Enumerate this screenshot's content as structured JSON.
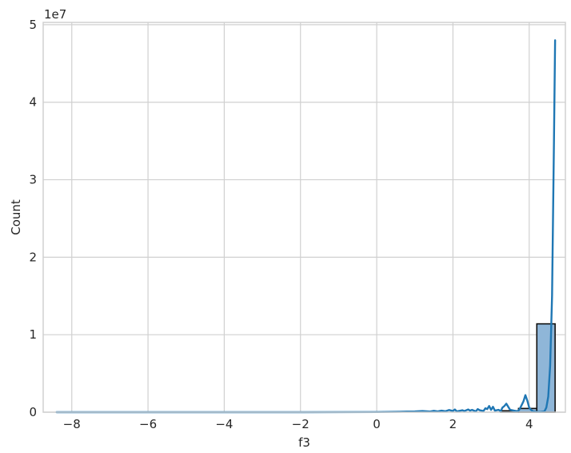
{
  "chart_data": {
    "type": "bar",
    "xlabel": "f3",
    "ylabel": "Count",
    "offset_text": "1e7",
    "xlim": [
      -8.75,
      4.95
    ],
    "ylim": [
      0,
      50300000
    ],
    "x_ticks": [
      -8,
      -6,
      -4,
      -2,
      0,
      2,
      4
    ],
    "x_tick_labels": [
      "−8",
      "−6",
      "−4",
      "−2",
      "0",
      "2",
      "4"
    ],
    "y_ticks": [
      0,
      10000000,
      20000000,
      30000000,
      40000000,
      50000000
    ],
    "y_tick_labels": [
      "0",
      "1",
      "2",
      "3",
      "4",
      "5"
    ],
    "grid": true,
    "colors": {
      "bar_fill": "#8fb6d8",
      "bar_edge": "#111111",
      "kde_line": "#1f77b4",
      "grid": "#d0d0d0",
      "frame": "#d0d0d0"
    },
    "bins": [
      {
        "x0": 3.25,
        "x1": 3.72,
        "count": 180000
      },
      {
        "x0": 3.72,
        "x1": 4.2,
        "count": 480000
      },
      {
        "x0": 4.2,
        "x1": 4.68,
        "count": 11400000
      }
    ],
    "kde": {
      "x": [
        -8.4,
        -6.0,
        -4.0,
        -2.0,
        0.0,
        0.6,
        1.0,
        1.2,
        1.4,
        1.5,
        1.6,
        1.7,
        1.8,
        1.9,
        2.0,
        2.05,
        2.1,
        2.2,
        2.25,
        2.3,
        2.4,
        2.45,
        2.5,
        2.6,
        2.65,
        2.7,
        2.8,
        2.85,
        2.9,
        2.95,
        3.0,
        3.05,
        3.1,
        3.2,
        3.25,
        3.3,
        3.35,
        3.4,
        3.5,
        3.6,
        3.7,
        3.75,
        3.8,
        3.85,
        3.9,
        3.95,
        4.0,
        4.05,
        4.1,
        4.2,
        4.3,
        4.4,
        4.45,
        4.5,
        4.55,
        4.6,
        4.65,
        4.68
      ],
      "y": [
        0,
        0,
        0,
        0,
        20000,
        60000,
        100000,
        150000,
        80000,
        180000,
        100000,
        200000,
        120000,
        280000,
        150000,
        350000,
        100000,
        200000,
        250000,
        150000,
        350000,
        200000,
        300000,
        100000,
        400000,
        250000,
        150000,
        500000,
        400000,
        800000,
        300000,
        700000,
        200000,
        300000,
        100000,
        600000,
        800000,
        1100000,
        300000,
        200000,
        100000,
        400000,
        900000,
        1400000,
        2200000,
        1500000,
        600000,
        300000,
        100000,
        50000,
        30000,
        100000,
        600000,
        2000000,
        6000000,
        15000000,
        35000000,
        48000000
      ]
    }
  }
}
